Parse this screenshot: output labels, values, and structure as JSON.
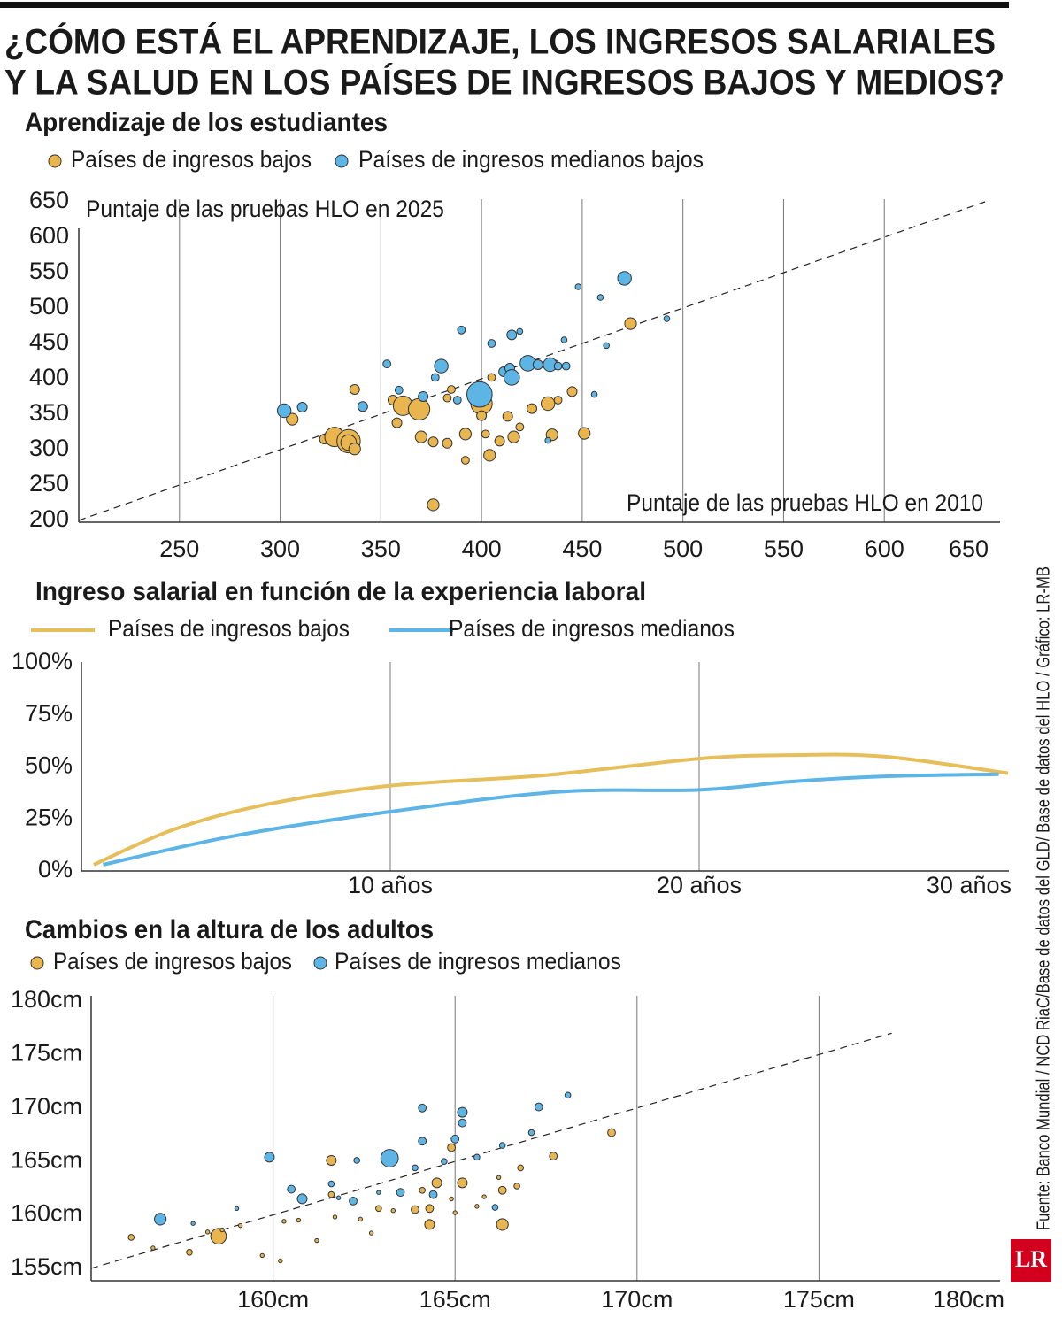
{
  "title_lines": [
    "¿CÓMO ESTÁ EL APRENDIZAJE, LOS INGRESOS SALARIALES",
    "Y LA SALUD EN LOS PAÍSES DE INGRESOS BAJOS Y MEDIOS?"
  ],
  "source": "Fuente: Banco Mundial / NCD RiaC/Base de datos del GLD/ Base de datos del HLO / Gráfico: LR-MB",
  "logo": "LR",
  "chart_data": [
    {
      "type": "scatter",
      "title": "Aprendizaje de los estudiantes",
      "x_label": "Puntaje de las pruebas HLO en 2010",
      "y_label": "Puntaje de las pruebas HLO en 2025",
      "xlim": [
        200,
        650
      ],
      "ylim": [
        200,
        650
      ],
      "xticks": [
        250,
        300,
        350,
        400,
        450,
        500,
        550,
        600,
        650
      ],
      "yticks": [
        200,
        250,
        300,
        350,
        400,
        450,
        500,
        550,
        600,
        650
      ],
      "reference_line": [
        200,
        650
      ],
      "grid": true,
      "series": [
        {
          "name": "Países de ingresos bajos",
          "color": "#e8b54f",
          "x": [
            306,
            322,
            327,
            334,
            334,
            337,
            337,
            356,
            358,
            361,
            369,
            370,
            376,
            376,
            383,
            383,
            385,
            392,
            392,
            400,
            400,
            402,
            404,
            405,
            409,
            413,
            416,
            419,
            425,
            433,
            435,
            436,
            438,
            445,
            451,
            474
          ],
          "values": [
            343,
            315,
            318,
            312,
            310,
            301,
            385,
            370,
            338,
            362,
            357,
            318,
            222,
            311,
            309,
            373,
            385,
            285,
            322,
            365,
            348,
            322,
            292,
            402,
            312,
            347,
            318,
            332,
            358,
            365,
            321,
            420,
            370,
            382,
            323,
            478
          ],
          "sizes": [
            6,
            5,
            10,
            12,
            8,
            6,
            5,
            5,
            5,
            10,
            11,
            6,
            6,
            5,
            5,
            4,
            4,
            4,
            6,
            11,
            5,
            4,
            6,
            4,
            5,
            5,
            6,
            4,
            5,
            7,
            6,
            5,
            4,
            5,
            6,
            6
          ]
        },
        {
          "name": "Países de ingresos medianos bajos",
          "color": "#5db5e6",
          "x": [
            302,
            311,
            341,
            353,
            359,
            371,
            377,
            380,
            388,
            390,
            399,
            405,
            411,
            414,
            415,
            415,
            419,
            423,
            428,
            434,
            433,
            438,
            442,
            441,
            448,
            456,
            459,
            462,
            471,
            492
          ],
          "values": [
            355,
            360,
            361,
            421,
            384,
            375,
            402,
            418,
            370,
            469,
            378,
            450,
            410,
            415,
            402,
            462,
            467,
            422,
            420,
            420,
            313,
            418,
            418,
            455,
            530,
            378,
            515,
            447,
            542,
            485
          ],
          "sizes": [
            7,
            5,
            5,
            4,
            4,
            5,
            4,
            7,
            4,
            4,
            13,
            4,
            5,
            5,
            8,
            5,
            3,
            8,
            5,
            7,
            3,
            4,
            4,
            3,
            3,
            3,
            3,
            3,
            7,
            3
          ]
        }
      ]
    },
    {
      "type": "line",
      "title": "Ingreso salarial en función de la experiencia laboral",
      "xlim": [
        0,
        30
      ],
      "ylim": [
        0,
        100
      ],
      "xticks": [
        {
          "value": 10,
          "label": "10 años"
        },
        {
          "value": 20,
          "label": "20 años"
        },
        {
          "value": 30,
          "label": "30 años"
        }
      ],
      "yticks": [
        {
          "value": 0,
          "label": "0%"
        },
        {
          "value": 25,
          "label": "25%"
        },
        {
          "value": 50,
          "label": "50%"
        },
        {
          "value": 75,
          "label": "75%"
        },
        {
          "value": 100,
          "label": "100%"
        }
      ],
      "grid": true,
      "series": [
        {
          "name": "Países de ingresos bajos",
          "color": "#e6be5a",
          "x": [
            0.4,
            3,
            6,
            10,
            15,
            20,
            23,
            26,
            30
          ],
          "values": [
            3,
            20,
            32,
            41,
            46,
            54,
            55.7,
            55,
            47
          ]
        },
        {
          "name": "Países de ingresos medianos",
          "color": "#5db4e6",
          "x": [
            0.7,
            5,
            10,
            15.4,
            20,
            23,
            26,
            29.7
          ],
          "values": [
            3,
            17,
            28.5,
            38,
            39,
            43,
            45.5,
            46.5
          ]
        }
      ]
    },
    {
      "type": "scatter",
      "title": "Cambios en la altura de los adultos",
      "xlim": [
        155,
        180
      ],
      "ylim": [
        154,
        180.5
      ],
      "xticks": [
        {
          "value": 160,
          "label": "160cm"
        },
        {
          "value": 165,
          "label": "165cm"
        },
        {
          "value": 170,
          "label": "170cm"
        },
        {
          "value": 175,
          "label": "175cm"
        },
        {
          "value": 180,
          "label": "180cm"
        }
      ],
      "yticks": [
        {
          "value": 155,
          "label": "155cm"
        },
        {
          "value": 160,
          "label": "160cm"
        },
        {
          "value": 165,
          "label": "165cm"
        },
        {
          "value": 170,
          "label": "170cm"
        },
        {
          "value": 175,
          "label": "175cm"
        },
        {
          "value": 180,
          "label": "180cm"
        }
      ],
      "reference_line": [
        155,
        177
      ],
      "grid": true,
      "series": [
        {
          "name": "Países de ingresos bajos",
          "color": "#e8b54f",
          "x": [
            156.1,
            156.7,
            157.7,
            158.5,
            158.2,
            158.6,
            159.1,
            159.7,
            160.2,
            160.3,
            160.7,
            161.2,
            161.6,
            161.6,
            161.7,
            162.4,
            162.7,
            162.9,
            163.3,
            163.9,
            164.1,
            164.3,
            164.3,
            164.5,
            164.9,
            164.9,
            165.2,
            165.8,
            166.3,
            166.3,
            166.7,
            166.8,
            167.7,
            169.3,
            165.6,
            166.2,
            165.0
          ],
          "values": [
            157.9,
            156.9,
            156.5,
            158.0,
            158.4,
            158.6,
            159.0,
            156.2,
            155.7,
            159.4,
            159.5,
            157.6,
            165.1,
            161.9,
            159.8,
            159.6,
            158.3,
            160.6,
            160.4,
            160.5,
            162.3,
            160.6,
            159.1,
            163.0,
            166.3,
            161.5,
            163.0,
            161.7,
            162.3,
            159.1,
            162.7,
            164.4,
            165.5,
            167.7,
            160.8,
            163.5,
            160.2
          ],
          "sizes": [
            3,
            2,
            3,
            8,
            2,
            2,
            2,
            2,
            2,
            2,
            2,
            2,
            5,
            3,
            2,
            2,
            2,
            3,
            2,
            4,
            3,
            4,
            5,
            5,
            4,
            2,
            5,
            2,
            4,
            6,
            3,
            3,
            4,
            4,
            2,
            2,
            2
          ]
        },
        {
          "name": "Países de ingresos medianos",
          "color": "#5db5e6",
          "x": [
            156.9,
            159.0,
            157.8,
            159.9,
            160.5,
            160.8,
            161.6,
            161.8,
            162.2,
            162.3,
            162.9,
            163.2,
            163.5,
            163.9,
            164.1,
            164.1,
            164.4,
            164.7,
            165.0,
            165.2,
            165.2,
            165.6,
            166.3,
            166.1,
            167.3,
            168.1,
            167.1
          ],
          "values": [
            159.6,
            160.6,
            159.2,
            165.4,
            162.4,
            161.5,
            162.9,
            161.6,
            161.3,
            165.1,
            162.1,
            165.3,
            162.1,
            164.4,
            170.0,
            166.9,
            161.9,
            165.0,
            167.1,
            169.6,
            168.6,
            165.4,
            166.5,
            160.7,
            170.1,
            171.2,
            167.7
          ],
          "sizes": [
            6,
            2,
            2,
            5,
            4,
            5,
            3,
            2,
            4,
            3,
            2,
            9,
            4,
            3,
            4,
            4,
            4,
            3,
            4,
            5,
            4,
            3,
            3,
            3,
            4,
            3,
            3
          ]
        }
      ]
    }
  ]
}
